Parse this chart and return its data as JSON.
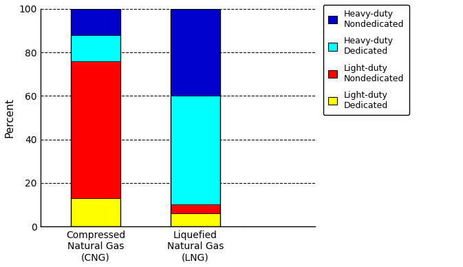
{
  "categories": [
    "Compressed\nNatural Gas\n(CNG)",
    "Liquefied\nNatural Gas\n(LNG)"
  ],
  "segments": [
    {
      "label": "Light-duty\nDedicated",
      "color": "#FFFF00",
      "values": [
        13,
        6
      ]
    },
    {
      "label": "Light-duty\nNondedicated",
      "color": "#FF0000",
      "values": [
        63,
        4
      ]
    },
    {
      "label": "Heavy-duty\nDedicated",
      "color": "#00FFFF",
      "values": [
        12,
        50
      ]
    },
    {
      "label": "Heavy-duty\nNondedicated",
      "color": "#0000CD",
      "values": [
        12,
        40
      ]
    }
  ],
  "ylabel": "Percent",
  "ylim": [
    0,
    100
  ],
  "yticks": [
    0,
    20,
    40,
    60,
    80,
    100
  ],
  "bar_width": 0.5,
  "x_positions": [
    0,
    1
  ],
  "xlim": [
    -0.55,
    2.2
  ],
  "legend_labels": [
    "Heavy-duty\nNondedicated",
    "Heavy-duty\nDedicated",
    "Light-duty\nNondedicated",
    "Light-duty\nDedicated"
  ],
  "legend_colors": [
    "#0000CD",
    "#00FFFF",
    "#FF0000",
    "#FFFF00"
  ],
  "background_color": "#FFFFFF",
  "grid_color": "#000000",
  "grid_linestyle": "--",
  "grid_linewidth": 0.8,
  "tick_fontsize": 10,
  "ylabel_fontsize": 11,
  "legend_fontsize": 9
}
